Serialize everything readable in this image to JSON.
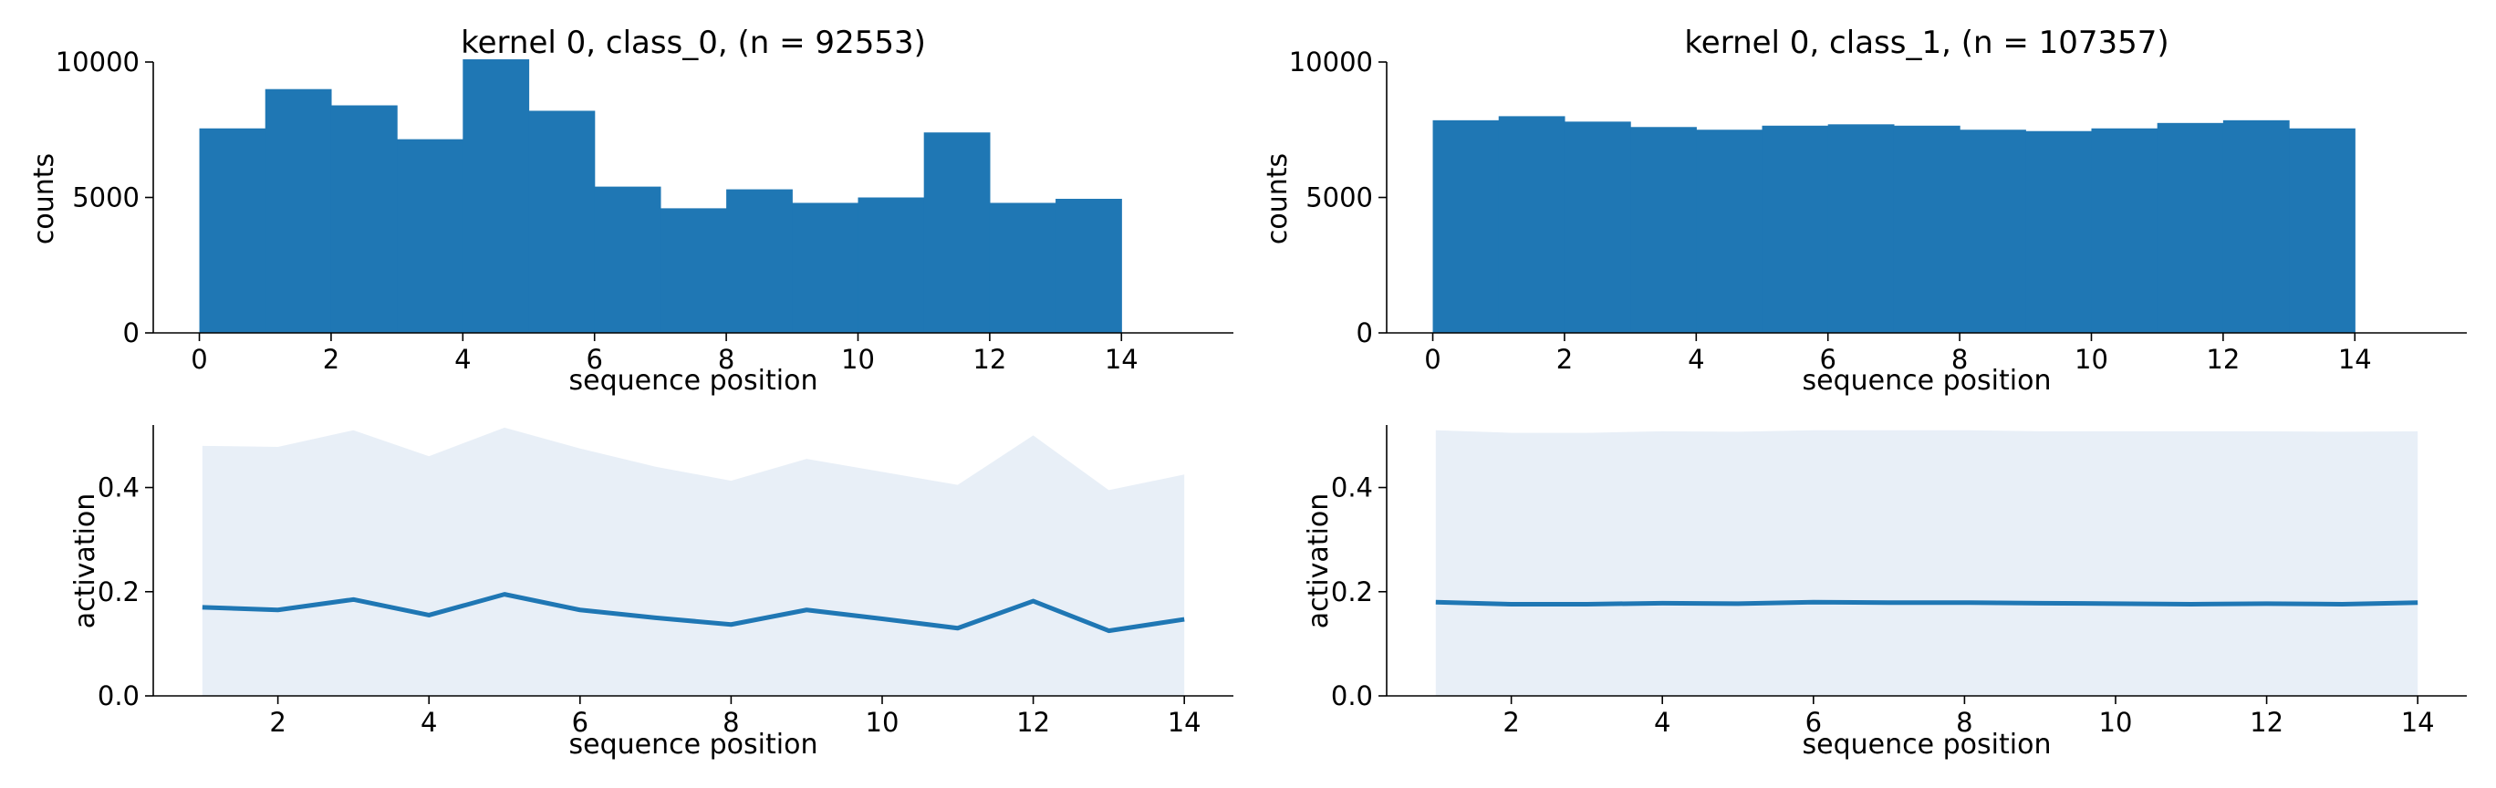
{
  "colors": {
    "primary": "#1f77b4",
    "band": "#e8eff7",
    "axis": "#000000"
  },
  "chart_data": [
    {
      "type": "bar",
      "title": "kernel 0, class_0, (n = 92553)",
      "xlabel": "sequence position",
      "ylabel": "counts",
      "xlim": [
        -0.7,
        15.7
      ],
      "ylim": [
        0,
        10000
      ],
      "xticks": [
        "0",
        "2",
        "4",
        "6",
        "8",
        "10",
        "12",
        "14"
      ],
      "yticks": [
        "0",
        "5000",
        "10000"
      ],
      "bin_edges": [
        0,
        1,
        2,
        3,
        4,
        5,
        6,
        7,
        8,
        9,
        10,
        11,
        12,
        13,
        14
      ],
      "values": [
        7550,
        9000,
        8400,
        7150,
        10100,
        8200,
        5400,
        4600,
        5300,
        4800,
        5000,
        7400,
        4800,
        4950
      ],
      "grid": false
    },
    {
      "type": "bar",
      "title": "kernel 0, class_1, (n = 107357)",
      "xlabel": "sequence position",
      "ylabel": "counts",
      "xlim": [
        -0.7,
        15.7
      ],
      "ylim": [
        0,
        10000
      ],
      "xticks": [
        "0",
        "2",
        "4",
        "6",
        "8",
        "10",
        "12",
        "14"
      ],
      "yticks": [
        "0",
        "5000",
        "10000"
      ],
      "bin_edges": [
        0,
        1,
        2,
        3,
        4,
        5,
        6,
        7,
        8,
        9,
        10,
        11,
        12,
        13,
        14
      ],
      "values": [
        7850,
        8000,
        7800,
        7600,
        7500,
        7650,
        7700,
        7650,
        7500,
        7450,
        7550,
        7750,
        7850,
        7550
      ],
      "grid": false
    },
    {
      "type": "area",
      "title": "",
      "xlabel": "sequence position",
      "ylabel": "activation",
      "xlim": [
        0.35,
        14.65
      ],
      "ylim": [
        0,
        0.52
      ],
      "xticks": [
        "2",
        "4",
        "6",
        "8",
        "10",
        "12",
        "14"
      ],
      "yticks": [
        "0.0",
        "0.2",
        "0.4"
      ],
      "x": [
        1,
        2,
        3,
        4,
        5,
        6,
        7,
        8,
        9,
        10,
        11,
        12,
        13,
        14
      ],
      "series": [
        {
          "values": [
            0.17,
            0.165,
            0.185,
            0.155,
            0.195,
            0.165,
            0.15,
            0.137,
            0.165,
            0.148,
            0.13,
            0.182,
            0.125,
            0.147
          ]
        },
        {
          "values": [
            0.48,
            0.478,
            0.51,
            0.46,
            0.515,
            0.475,
            0.44,
            0.413,
            0.455,
            0.43,
            0.405,
            0.5,
            0.395,
            0.425
          ],
          "fill_to_zero": true
        }
      ],
      "grid": false
    },
    {
      "type": "area",
      "title": "",
      "xlabel": "sequence position",
      "ylabel": "activation",
      "xlim": [
        0.35,
        14.65
      ],
      "ylim": [
        0,
        0.52
      ],
      "xticks": [
        "2",
        "4",
        "6",
        "8",
        "10",
        "12",
        "14"
      ],
      "yticks": [
        "0.0",
        "0.2",
        "0.4"
      ],
      "x": [
        1,
        2,
        3,
        4,
        5,
        6,
        7,
        8,
        9,
        10,
        11,
        12,
        13,
        14
      ],
      "series": [
        {
          "values": [
            0.18,
            0.176,
            0.176,
            0.178,
            0.177,
            0.18,
            0.179,
            0.179,
            0.178,
            0.177,
            0.176,
            0.177,
            0.176,
            0.179
          ]
        },
        {
          "values": [
            0.51,
            0.505,
            0.505,
            0.508,
            0.507,
            0.51,
            0.51,
            0.51,
            0.508,
            0.508,
            0.508,
            0.508,
            0.507,
            0.508
          ],
          "fill_to_zero": true
        }
      ],
      "grid": false
    }
  ]
}
